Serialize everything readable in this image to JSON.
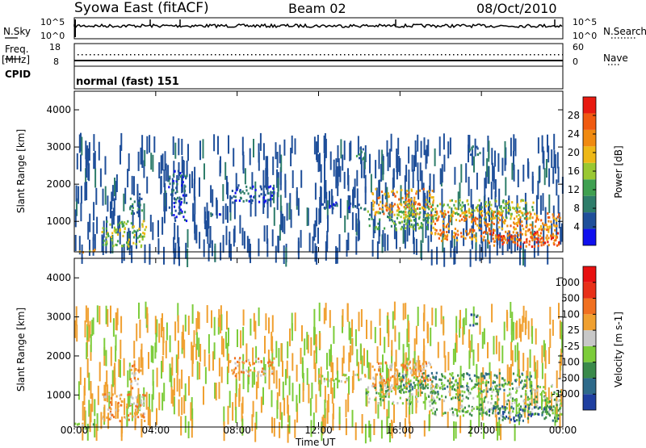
{
  "header": {
    "title": "Syowa East (fitACF)",
    "beam": "Beam 02",
    "date": "08/Oct/2010"
  },
  "status_panels": {
    "nsky_label": "N.Sky",
    "nsearch_label": "N.Search",
    "freq_label": "Freq.",
    "freq_unit": "[MHz]",
    "nave_label": "Nave",
    "cpid_label": "CPID",
    "cpid_value": "normal (fast) 151",
    "left_ticks_noise": [
      "10^5",
      "10^0"
    ],
    "right_ticks_noise": [
      "10^5",
      "10^0"
    ],
    "left_ticks_freq": [
      "18",
      "8"
    ],
    "right_ticks_nave": [
      "60",
      "0"
    ]
  },
  "chart_data": [
    {
      "type": "heatmap",
      "name": "power",
      "ylabel": "Slant Range [km]",
      "xlabel": "",
      "xlim": [
        0,
        24
      ],
      "ylim": [
        180,
        4500
      ],
      "x_tick_values": [
        0,
        4,
        8,
        12,
        16,
        20,
        24
      ],
      "y_tick_values": [
        1000,
        2000,
        3000,
        4000
      ],
      "y_tick_labels": [
        "1000",
        "2000",
        "3000",
        "4000"
      ],
      "colorbar": {
        "label": "Power [dB]",
        "range": [
          0,
          32
        ],
        "tick_values": [
          4,
          8,
          12,
          16,
          20,
          24,
          28
        ],
        "tick_labels": [
          "4",
          "8",
          "12",
          "16",
          "20",
          "24",
          "28"
        ],
        "colors": [
          "#1010ee",
          "#1f4f9a",
          "#2e7d6a",
          "#3fa050",
          "#9ac832",
          "#eeb816",
          "#f08a10",
          "#f05a10",
          "#e81a10"
        ]
      },
      "regions": [
        {
          "x": [
            0.0,
            1.0
          ],
          "y": [
            200,
            300
          ],
          "level": 5
        },
        {
          "x": [
            1.3,
            3.5
          ],
          "y": [
            350,
            1050
          ],
          "level": 4
        },
        {
          "x": [
            2.7,
            3.3
          ],
          "y": [
            1200,
            1800
          ],
          "level": 2
        },
        {
          "x": [
            4.6,
            5.5
          ],
          "y": [
            1000,
            2400
          ],
          "level": 1
        },
        {
          "x": [
            6.2,
            7.6
          ],
          "y": [
            1180,
            1250
          ],
          "level": 1
        },
        {
          "x": [
            7.6,
            9.8
          ],
          "y": [
            1500,
            2000
          ],
          "level": 1
        },
        {
          "x": [
            12.0,
            14.3
          ],
          "y": [
            1350,
            1550
          ],
          "level": 1
        },
        {
          "x": [
            13.8,
            14.2
          ],
          "y": [
            2700,
            3100
          ],
          "level": 2
        },
        {
          "x": [
            14.6,
            17.6
          ],
          "y": [
            1200,
            1900
          ],
          "level": 6
        },
        {
          "x": [
            14.3,
            17.8
          ],
          "y": [
            800,
            1300
          ],
          "level": 3
        },
        {
          "x": [
            15.8,
            22.6
          ],
          "y": [
            1100,
            1600
          ],
          "level": 4
        },
        {
          "x": [
            17.4,
            23.9
          ],
          "y": [
            500,
            1300
          ],
          "level": 6
        },
        {
          "x": [
            20.3,
            23.9
          ],
          "y": [
            350,
            750
          ],
          "level": 7
        },
        {
          "x": [
            19.3,
            19.9
          ],
          "y": [
            2800,
            3100
          ],
          "level": 2
        }
      ]
    },
    {
      "type": "heatmap",
      "name": "velocity",
      "ylabel": "Slant Range [km]",
      "xlabel": "Time UT",
      "xlim": [
        0,
        24
      ],
      "ylim": [
        180,
        4500
      ],
      "x_tick_values": [
        0,
        4,
        8,
        12,
        16,
        20,
        24
      ],
      "x_tick_labels": [
        "00:00",
        "04:00",
        "08:00",
        "12:00",
        "16:00",
        "20:00",
        "00:00"
      ],
      "y_tick_values": [
        1000,
        2000,
        3000,
        4000
      ],
      "y_tick_labels": [
        "1000",
        "2000",
        "3000",
        "4000"
      ],
      "colorbar": {
        "label": "Velocity [m s-1]",
        "tick_labels": [
          "1000",
          "500",
          "100",
          "25",
          "-25",
          "-100",
          "-500",
          "-1000"
        ],
        "colors": [
          "#1f3fa0",
          "#2e6a8a",
          "#3a8a4a",
          "#7ccc3a",
          "#c8c8c8",
          "#f0a030",
          "#f07020",
          "#e83018",
          "#e81010"
        ]
      },
      "regions": [
        {
          "x": [
            0.0,
            1.0
          ],
          "y": [
            200,
            300
          ],
          "level": 3
        },
        {
          "x": [
            1.3,
            3.5
          ],
          "y": [
            350,
            1050
          ],
          "level": 5
        },
        {
          "x": [
            2.7,
            3.3
          ],
          "y": [
            1200,
            1800
          ],
          "level": 5
        },
        {
          "x": [
            7.6,
            9.8
          ],
          "y": [
            1500,
            2000
          ],
          "level": 5
        },
        {
          "x": [
            12.0,
            14.3
          ],
          "y": [
            1350,
            1550
          ],
          "level": 4
        },
        {
          "x": [
            14.6,
            17.6
          ],
          "y": [
            1200,
            1900
          ],
          "level": 5
        },
        {
          "x": [
            14.3,
            17.8
          ],
          "y": [
            800,
            1300
          ],
          "level": 3
        },
        {
          "x": [
            15.8,
            22.6
          ],
          "y": [
            1100,
            1600
          ],
          "level": 2
        },
        {
          "x": [
            17.4,
            23.9
          ],
          "y": [
            500,
            1300
          ],
          "level": 3
        },
        {
          "x": [
            20.3,
            23.9
          ],
          "y": [
            350,
            750
          ],
          "level": 1
        },
        {
          "x": [
            19.3,
            19.9
          ],
          "y": [
            2800,
            3100
          ],
          "level": 1
        }
      ]
    }
  ]
}
